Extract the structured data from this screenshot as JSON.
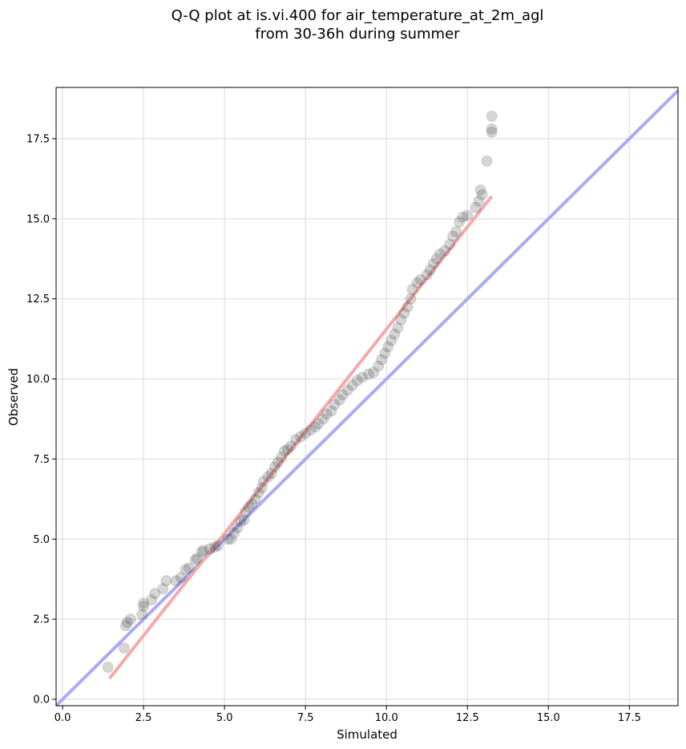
{
  "chart_data": {
    "type": "scatter",
    "title": "Q-Q plot at is.vi.400 for air_temperature_at_2m_agl",
    "subtitle": "from 30-36h during summer",
    "xlabel": "Simulated",
    "ylabel": "Observed",
    "xlim": [
      -0.2,
      19.0
    ],
    "ylim": [
      -0.2,
      19.1
    ],
    "xticks": [
      "0.0",
      "2.5",
      "5.0",
      "7.5",
      "10.0",
      "12.5",
      "15.0",
      "17.5"
    ],
    "yticks": [
      "0.0",
      "2.5",
      "5.0",
      "7.5",
      "10.0",
      "12.5",
      "15.0",
      "17.5"
    ],
    "grid": true,
    "colors": {
      "points": "#333333",
      "identity_line": "#aaaaf5",
      "fit_line": "#f5a9a9",
      "frame": "#000000",
      "grid": "#e6e6e6"
    },
    "identity_line": [
      [
        -0.2,
        -0.2
      ],
      [
        19.0,
        19.0
      ]
    ],
    "fit_line": [
      [
        1.45,
        0.65
      ],
      [
        13.25,
        15.7
      ]
    ],
    "points": [
      [
        1.4,
        1.0
      ],
      [
        1.9,
        1.6
      ],
      [
        1.95,
        2.3
      ],
      [
        2.0,
        2.4
      ],
      [
        2.1,
        2.5
      ],
      [
        2.45,
        2.65
      ],
      [
        2.5,
        2.9
      ],
      [
        2.5,
        3.0
      ],
      [
        2.75,
        3.1
      ],
      [
        2.85,
        3.3
      ],
      [
        3.1,
        3.45
      ],
      [
        3.2,
        3.7
      ],
      [
        3.5,
        3.7
      ],
      [
        3.65,
        3.8
      ],
      [
        3.8,
        4.05
      ],
      [
        3.9,
        4.1
      ],
      [
        4.1,
        4.35
      ],
      [
        4.15,
        4.4
      ],
      [
        4.3,
        4.6
      ],
      [
        4.35,
        4.65
      ],
      [
        4.55,
        4.7
      ],
      [
        4.7,
        4.75
      ],
      [
        4.8,
        4.8
      ],
      [
        5.1,
        5.0
      ],
      [
        5.2,
        5.0
      ],
      [
        5.3,
        5.2
      ],
      [
        5.4,
        5.35
      ],
      [
        5.5,
        5.55
      ],
      [
        5.6,
        5.6
      ],
      [
        5.65,
        5.85
      ],
      [
        5.75,
        6.0
      ],
      [
        5.85,
        6.1
      ],
      [
        5.95,
        6.25
      ],
      [
        6.05,
        6.45
      ],
      [
        6.15,
        6.6
      ],
      [
        6.2,
        6.8
      ],
      [
        6.35,
        6.95
      ],
      [
        6.45,
        7.05
      ],
      [
        6.55,
        7.25
      ],
      [
        6.65,
        7.4
      ],
      [
        6.75,
        7.55
      ],
      [
        6.85,
        7.75
      ],
      [
        6.95,
        7.8
      ],
      [
        7.05,
        7.9
      ],
      [
        7.2,
        8.1
      ],
      [
        7.35,
        8.2
      ],
      [
        7.5,
        8.3
      ],
      [
        7.65,
        8.4
      ],
      [
        7.8,
        8.5
      ],
      [
        7.9,
        8.6
      ],
      [
        8.05,
        8.75
      ],
      [
        8.15,
        8.9
      ],
      [
        8.3,
        9.0
      ],
      [
        8.4,
        9.2
      ],
      [
        8.55,
        9.35
      ],
      [
        8.65,
        9.5
      ],
      [
        8.8,
        9.65
      ],
      [
        8.95,
        9.8
      ],
      [
        9.1,
        9.95
      ],
      [
        9.25,
        10.05
      ],
      [
        9.45,
        10.15
      ],
      [
        9.6,
        10.2
      ],
      [
        9.75,
        10.4
      ],
      [
        9.85,
        10.6
      ],
      [
        9.95,
        10.8
      ],
      [
        10.05,
        11.0
      ],
      [
        10.15,
        11.2
      ],
      [
        10.25,
        11.4
      ],
      [
        10.35,
        11.6
      ],
      [
        10.45,
        11.85
      ],
      [
        10.55,
        12.05
      ],
      [
        10.65,
        12.25
      ],
      [
        10.75,
        12.5
      ],
      [
        10.8,
        12.8
      ],
      [
        10.95,
        13.0
      ],
      [
        11.05,
        13.1
      ],
      [
        11.25,
        13.25
      ],
      [
        11.35,
        13.4
      ],
      [
        11.45,
        13.6
      ],
      [
        11.55,
        13.75
      ],
      [
        11.65,
        13.9
      ],
      [
        11.8,
        14.0
      ],
      [
        11.95,
        14.2
      ],
      [
        12.05,
        14.45
      ],
      [
        12.15,
        14.6
      ],
      [
        12.25,
        14.9
      ],
      [
        12.35,
        15.05
      ],
      [
        12.5,
        15.1
      ],
      [
        12.75,
        15.35
      ],
      [
        12.85,
        15.55
      ],
      [
        12.95,
        15.75
      ],
      [
        12.9,
        15.9
      ],
      [
        13.1,
        16.8
      ],
      [
        13.25,
        17.7
      ],
      [
        13.25,
        17.8
      ],
      [
        13.25,
        18.2
      ]
    ]
  }
}
